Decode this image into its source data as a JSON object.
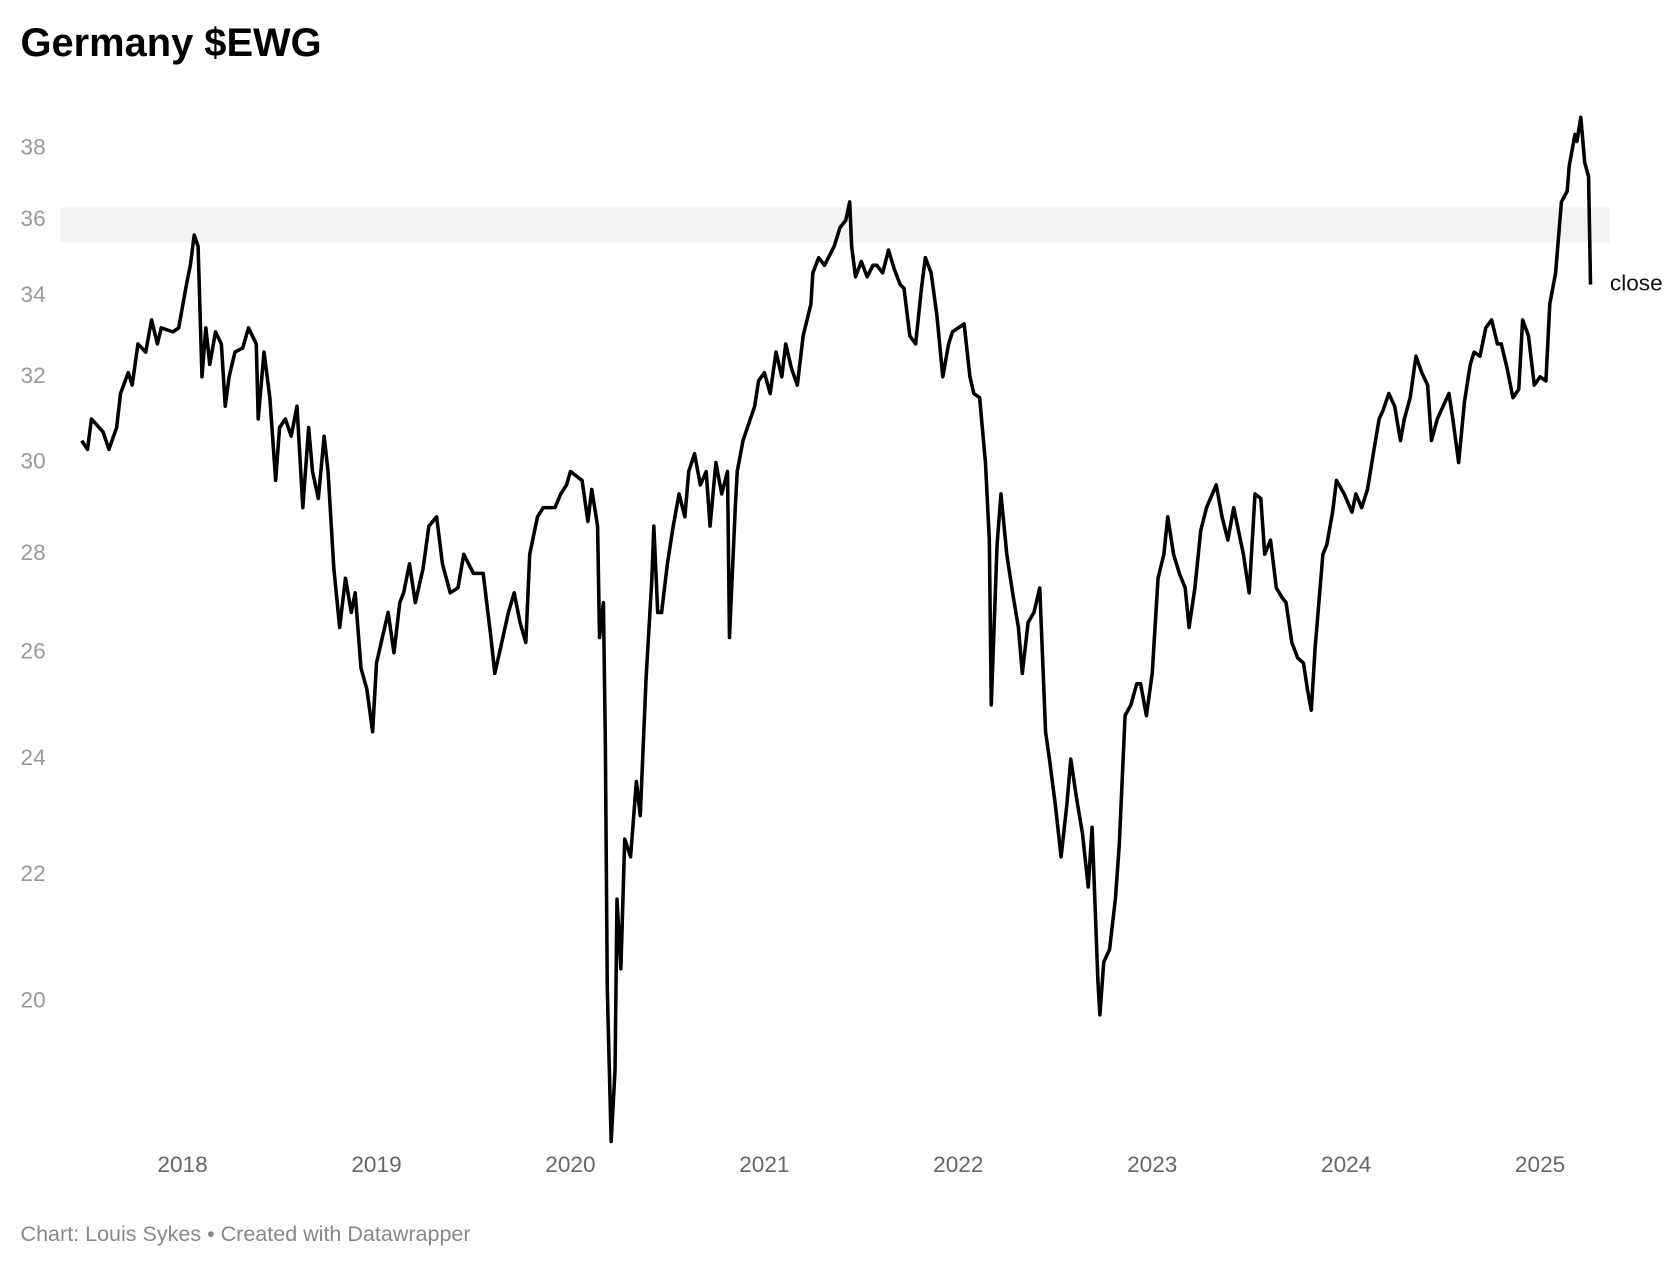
{
  "chart_data": {
    "type": "line",
    "title": "Germany $EWG",
    "footer": "Chart: Louis Sykes • Created with Datawrapper",
    "log_scale": true,
    "grid": false,
    "xlim": [
      2017.37,
      2025.36
    ],
    "xticks": [
      2018,
      2019,
      2020,
      2021,
      2022,
      2023,
      2024,
      2025
    ],
    "ylim": [
      17.9,
      39.5
    ],
    "yticks": [
      20,
      22,
      24,
      26,
      28,
      30,
      32,
      34,
      36,
      38
    ],
    "highlight_range": [
      35.4,
      36.35
    ],
    "highlight_color": "#f3f3f3",
    "x": [
      2017.48,
      2017.51,
      2017.53,
      2017.59,
      2017.62,
      2017.66,
      2017.68,
      2017.72,
      2017.74,
      2017.77,
      2017.81,
      2017.84,
      2017.87,
      2017.89,
      2017.95,
      2017.98,
      2018.02,
      2018.04,
      2018.06,
      2018.08,
      2018.1,
      2018.12,
      2018.14,
      2018.17,
      2018.2,
      2018.22,
      2018.24,
      2018.27,
      2018.31,
      2018.34,
      2018.38,
      2018.39,
      2018.42,
      2018.45,
      2018.48,
      2018.5,
      2018.53,
      2018.56,
      2018.59,
      2018.62,
      2018.65,
      2018.67,
      2018.7,
      2018.73,
      2018.75,
      2018.78,
      2018.81,
      2018.84,
      2018.87,
      2018.89,
      2018.92,
      2018.95,
      2018.98,
      2019.0,
      2019.03,
      2019.06,
      2019.09,
      2019.12,
      2019.14,
      2019.17,
      2019.2,
      2019.24,
      2019.27,
      2019.31,
      2019.34,
      2019.38,
      2019.42,
      2019.45,
      2019.5,
      2019.55,
      2019.59,
      2019.61,
      2019.64,
      2019.68,
      2019.71,
      2019.74,
      2019.77,
      2019.79,
      2019.83,
      2019.86,
      2019.92,
      2019.95,
      2019.98,
      2020.0,
      2020.06,
      2020.09,
      2020.11,
      2020.14,
      2020.15,
      2020.17,
      2020.18,
      2020.19,
      2020.21,
      2020.23,
      2020.24,
      2020.26,
      2020.28,
      2020.31,
      2020.34,
      2020.36,
      2020.39,
      2020.42,
      2020.43,
      2020.45,
      2020.47,
      2020.5,
      2020.53,
      2020.56,
      2020.59,
      2020.61,
      2020.64,
      2020.67,
      2020.7,
      2020.72,
      2020.75,
      2020.78,
      2020.81,
      2020.82,
      2020.85,
      2020.86,
      2020.89,
      2020.92,
      2020.95,
      2020.97,
      2021.0,
      2021.03,
      2021.06,
      2021.09,
      2021.11,
      2021.14,
      2021.17,
      2021.2,
      2021.24,
      2021.25,
      2021.28,
      2021.31,
      2021.34,
      2021.36,
      2021.39,
      2021.42,
      2021.44,
      2021.45,
      2021.47,
      2021.5,
      2021.53,
      2021.56,
      2021.58,
      2021.61,
      2021.64,
      2021.67,
      2021.7,
      2021.72,
      2021.75,
      2021.78,
      2021.81,
      2021.83,
      2021.86,
      2021.89,
      2021.92,
      2021.95,
      2021.97,
      2022.0,
      2022.03,
      2022.06,
      2022.08,
      2022.11,
      2022.14,
      2022.16,
      2022.17,
      2022.2,
      2022.22,
      2022.25,
      2022.28,
      2022.31,
      2022.33,
      2022.36,
      2022.39,
      2022.42,
      2022.45,
      2022.47,
      2022.5,
      2022.53,
      2022.56,
      2022.58,
      2022.61,
      2022.64,
      2022.67,
      2022.69,
      2022.72,
      2022.73,
      2022.75,
      2022.78,
      2022.81,
      2022.83,
      2022.86,
      2022.89,
      2022.92,
      2022.94,
      2022.97,
      2023.0,
      2023.03,
      2023.06,
      2023.08,
      2023.11,
      2023.14,
      2023.17,
      2023.19,
      2023.22,
      2023.25,
      2023.28,
      2023.31,
      2023.33,
      2023.36,
      2023.39,
      2023.42,
      2023.44,
      2023.47,
      2023.5,
      2023.53,
      2023.56,
      2023.58,
      2023.61,
      2023.64,
      2023.67,
      2023.69,
      2023.72,
      2023.75,
      2023.78,
      2023.8,
      2023.82,
      2023.84,
      2023.88,
      2023.9,
      2023.93,
      2023.95,
      2023.99,
      2024.03,
      2024.05,
      2024.08,
      2024.11,
      2024.14,
      2024.17,
      2024.19,
      2024.22,
      2024.25,
      2024.28,
      2024.3,
      2024.33,
      2024.36,
      2024.39,
      2024.42,
      2024.44,
      2024.47,
      2024.5,
      2024.53,
      2024.55,
      2024.58,
      2024.61,
      2024.64,
      2024.66,
      2024.69,
      2024.72,
      2024.75,
      2024.78,
      2024.8,
      2024.83,
      2024.86,
      2024.89,
      2024.91,
      2024.94,
      2024.97,
      2025.0,
      2025.03,
      2025.05,
      2025.08,
      2025.11,
      2025.14,
      2025.15,
      2025.18,
      2025.19,
      2025.21,
      2025.23,
      2025.25,
      2025.26
    ],
    "series": [
      {
        "name": "close",
        "color": "#000000",
        "values": [
          30.5,
          30.3,
          31.0,
          30.7,
          30.3,
          30.8,
          31.6,
          32.1,
          31.8,
          32.8,
          32.6,
          33.4,
          32.8,
          33.2,
          33.1,
          33.2,
          34.3,
          34.8,
          35.6,
          35.3,
          32.0,
          33.2,
          32.3,
          33.1,
          32.8,
          31.3,
          32.0,
          32.6,
          32.7,
          33.2,
          32.8,
          31.0,
          32.6,
          31.5,
          29.6,
          30.8,
          31.0,
          30.6,
          31.3,
          29.0,
          30.8,
          29.8,
          29.2,
          30.6,
          29.8,
          27.7,
          26.5,
          27.5,
          26.8,
          27.2,
          25.7,
          25.3,
          24.5,
          25.8,
          26.3,
          26.8,
          26.0,
          27.0,
          27.2,
          27.8,
          27.0,
          27.7,
          28.6,
          28.8,
          27.8,
          27.2,
          27.3,
          28.0,
          27.6,
          27.6,
          26.3,
          25.6,
          26.1,
          26.8,
          27.2,
          26.6,
          26.2,
          28.0,
          28.8,
          29.0,
          29.0,
          29.3,
          29.5,
          29.8,
          29.6,
          28.7,
          29.4,
          28.6,
          26.3,
          27.0,
          24.3,
          20.2,
          18.0,
          19.0,
          21.6,
          20.5,
          22.6,
          22.3,
          23.6,
          23.0,
          25.5,
          27.5,
          28.6,
          26.8,
          26.8,
          27.8,
          28.6,
          29.3,
          28.8,
          29.8,
          30.2,
          29.5,
          29.8,
          28.6,
          30.0,
          29.3,
          29.8,
          26.3,
          29.0,
          29.8,
          30.5,
          30.9,
          31.3,
          31.9,
          32.1,
          31.6,
          32.6,
          32.0,
          32.8,
          32.2,
          31.8,
          33.0,
          33.8,
          34.6,
          35.0,
          34.8,
          35.1,
          35.3,
          35.8,
          36.0,
          36.5,
          35.3,
          34.5,
          34.9,
          34.5,
          34.8,
          34.8,
          34.6,
          35.2,
          34.7,
          34.3,
          34.2,
          33.0,
          32.8,
          34.2,
          35.0,
          34.6,
          33.5,
          32.0,
          32.8,
          33.1,
          33.2,
          33.3,
          32.0,
          31.6,
          31.5,
          30.0,
          28.3,
          25.0,
          28.2,
          29.3,
          28.0,
          27.2,
          26.5,
          25.6,
          26.6,
          26.8,
          27.3,
          24.5,
          24.0,
          23.2,
          22.3,
          23.2,
          24.0,
          23.3,
          22.7,
          21.8,
          22.8,
          20.3,
          19.8,
          20.6,
          20.8,
          21.6,
          22.5,
          24.8,
          25.0,
          25.4,
          25.4,
          24.8,
          25.6,
          27.5,
          28.0,
          28.8,
          28.0,
          27.6,
          27.3,
          26.5,
          27.3,
          28.5,
          29.0,
          29.3,
          29.5,
          28.8,
          28.3,
          29.0,
          28.6,
          28.0,
          27.2,
          29.3,
          29.2,
          28.0,
          28.3,
          27.3,
          27.1,
          27.0,
          26.2,
          25.9,
          25.8,
          25.3,
          24.9,
          26.1,
          28.0,
          28.2,
          28.9,
          29.6,
          29.3,
          28.9,
          29.3,
          29.0,
          29.4,
          30.2,
          31.0,
          31.2,
          31.6,
          31.3,
          30.5,
          31.0,
          31.5,
          32.5,
          32.1,
          31.8,
          30.5,
          31.0,
          31.3,
          31.6,
          31.0,
          30.0,
          31.4,
          32.3,
          32.6,
          32.5,
          33.2,
          33.4,
          32.8,
          32.8,
          32.2,
          31.5,
          31.7,
          33.4,
          33.0,
          31.8,
          32.0,
          31.9,
          33.8,
          34.6,
          36.5,
          36.8,
          37.5,
          38.4,
          38.2,
          38.9,
          37.6,
          37.2,
          34.3
        ]
      }
    ]
  }
}
